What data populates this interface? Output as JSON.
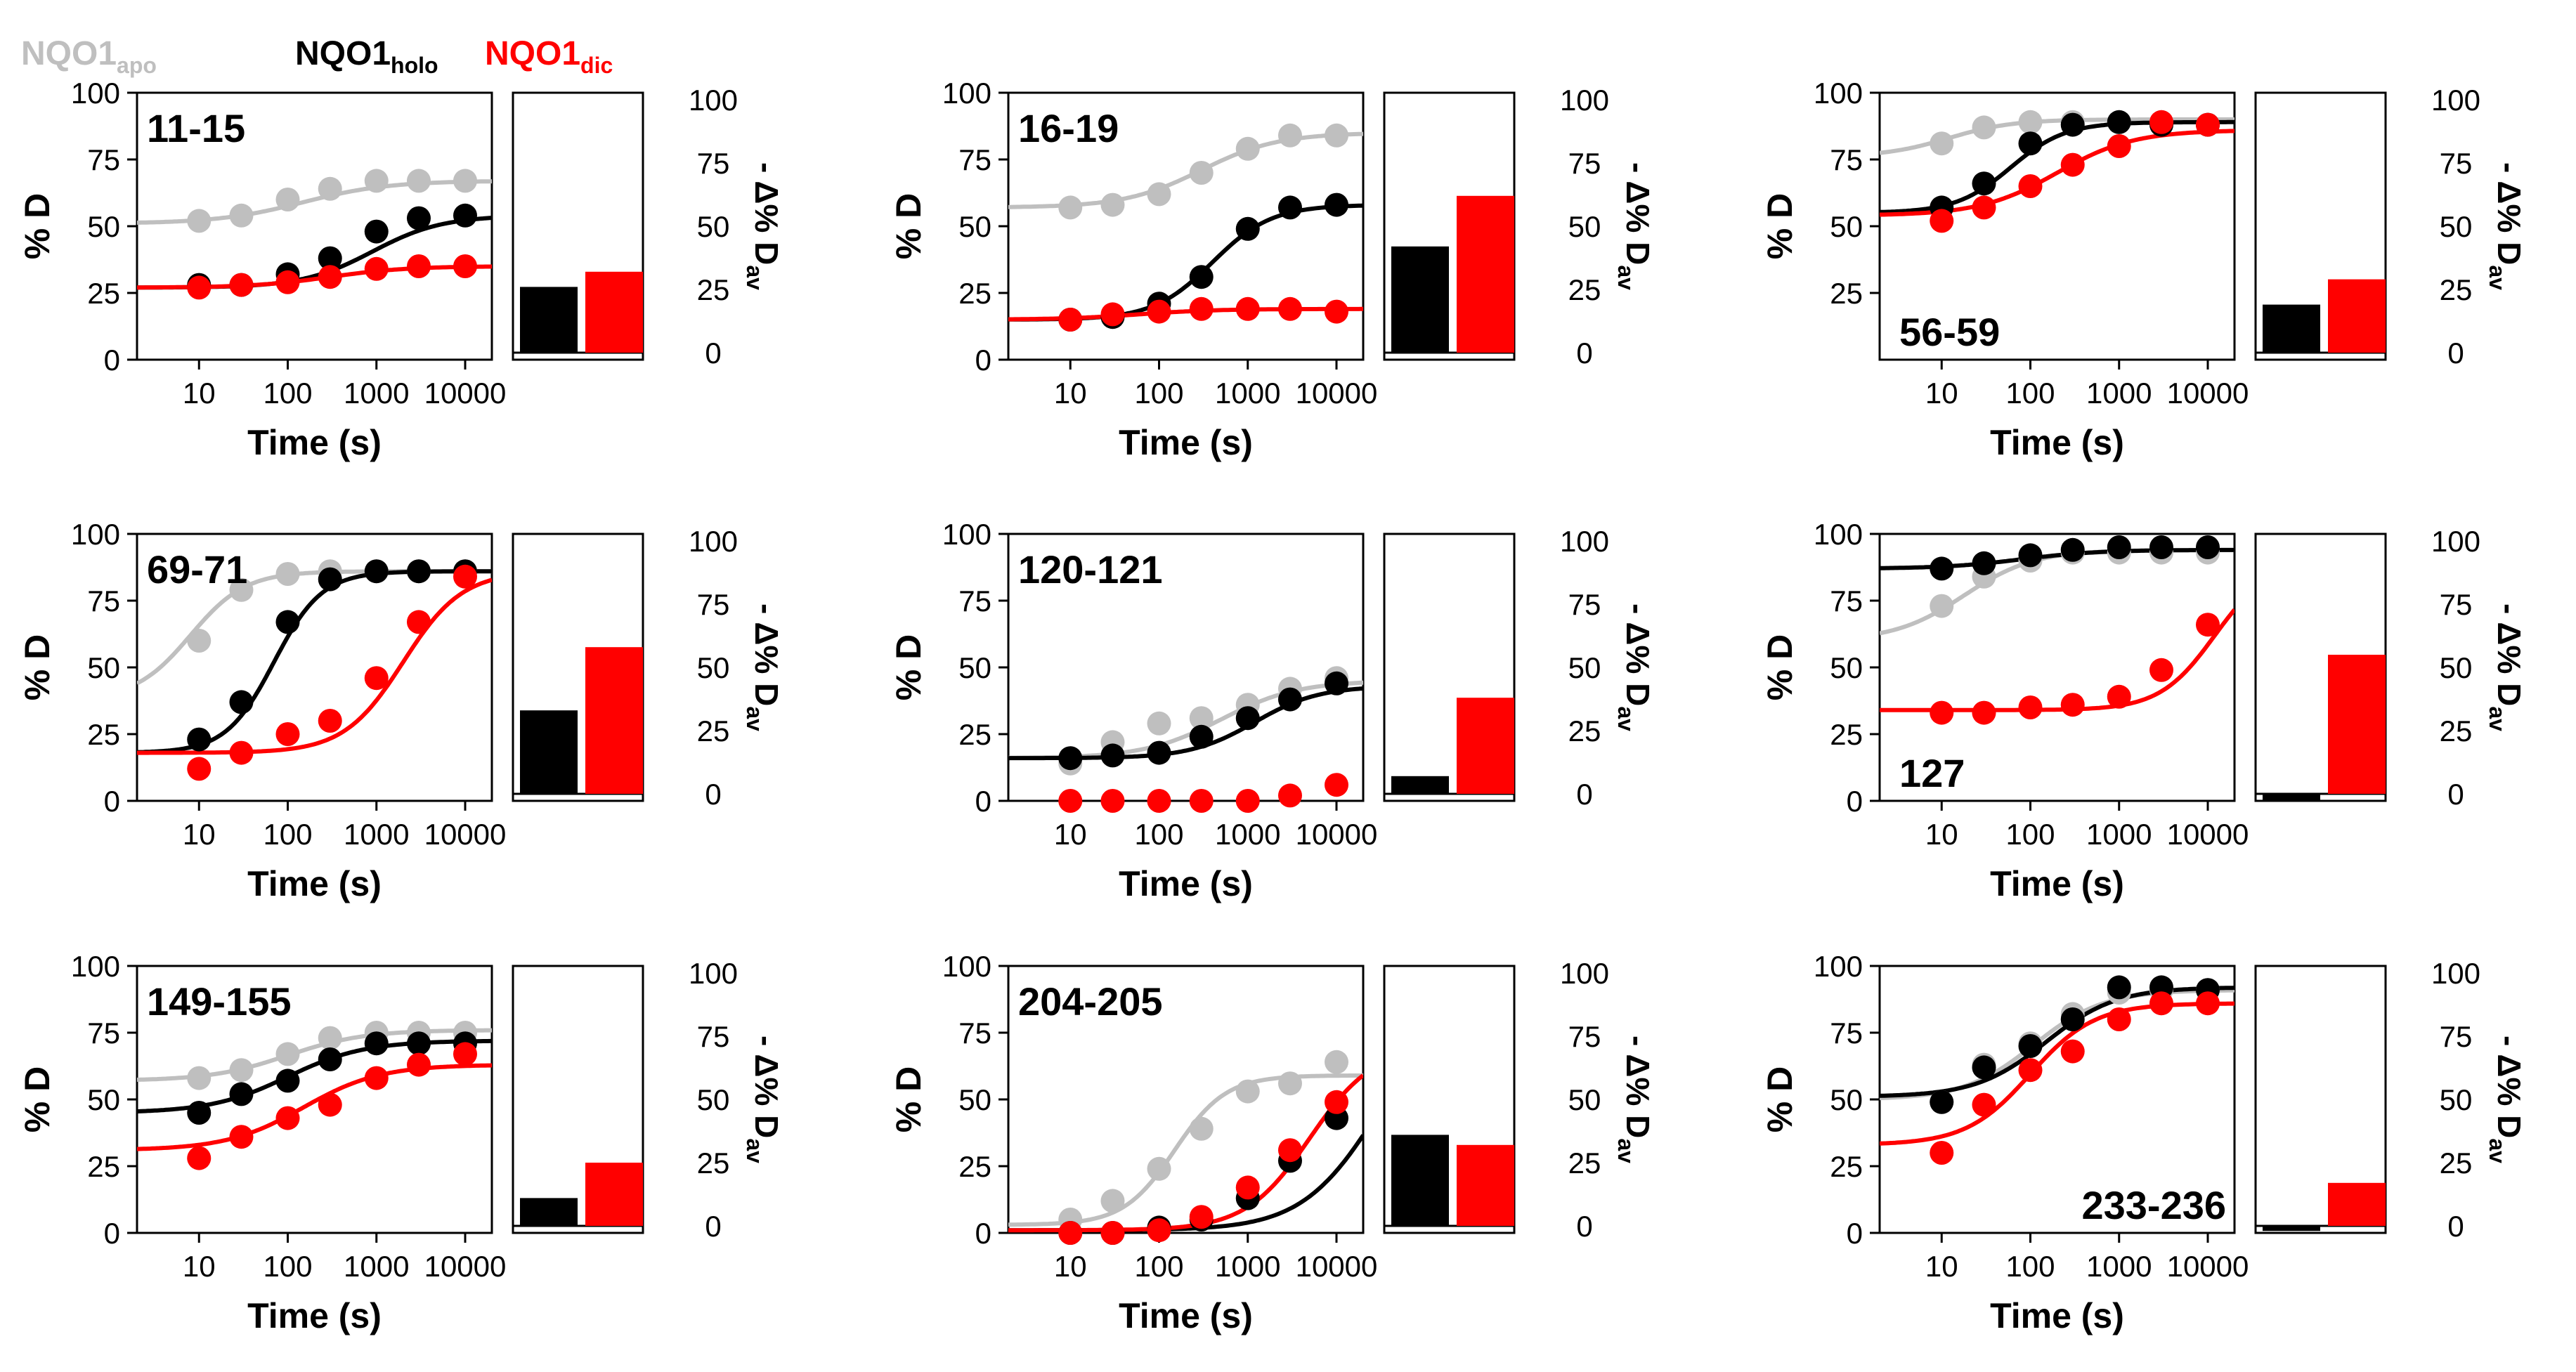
{
  "legend": [
    {
      "name": "NQO1",
      "sub": "apo",
      "color": "#bfbfbf"
    },
    {
      "name": "NQO1",
      "sub": "holo",
      "color": "#000000"
    },
    {
      "name": "NQO1",
      "sub": "dic",
      "color": "#ff0000"
    }
  ],
  "colors": {
    "apo": "#bfbfbf",
    "holo": "#000000",
    "dic": "#ff0000"
  },
  "chart_data": [
    {
      "type": "scatter",
      "title": "11-15",
      "xlabel": "Time (s)",
      "ylabel": "% D",
      "ylabel2": "- Δ% D",
      "ylabel2_sub": "av",
      "x": [
        10,
        30,
        100,
        300,
        1000,
        3000,
        10000
      ],
      "xscale": "log",
      "xlim": [
        2,
        20000
      ],
      "ylim": [
        0,
        100
      ],
      "xticks": [
        "10",
        "100",
        "1000",
        "10000"
      ],
      "yticks": [
        "0",
        "25",
        "50",
        "75",
        "100"
      ],
      "series": [
        {
          "name": "apo",
          "values": [
            52,
            54,
            60,
            64,
            67,
            67,
            67
          ],
          "fit": {
            "lo": 51,
            "hi": 67,
            "mid": 150,
            "n": 0.9
          }
        },
        {
          "name": "holo",
          "values": [
            28,
            28,
            32,
            38,
            48,
            53,
            54
          ],
          "fit": {
            "lo": 27,
            "hi": 54,
            "mid": 900,
            "n": 1.1
          }
        },
        {
          "name": "dic",
          "values": [
            27,
            28,
            29,
            31,
            34,
            35,
            35
          ],
          "fit": {
            "lo": 27,
            "hi": 35,
            "mid": 300,
            "n": 1
          }
        }
      ],
      "bars": {
        "holo": 26,
        "dic": 32
      },
      "label_pos": "top-left"
    },
    {
      "type": "scatter",
      "title": "16-19",
      "xlabel": "Time (s)",
      "ylabel": "% D",
      "ylabel2": "- Δ% D",
      "ylabel2_sub": "av",
      "x": [
        10,
        30,
        100,
        300,
        1000,
        3000,
        10000
      ],
      "xscale": "log",
      "xlim": [
        2,
        20000
      ],
      "ylim": [
        0,
        100
      ],
      "xticks": [
        "10",
        "100",
        "1000",
        "10000"
      ],
      "yticks": [
        "0",
        "25",
        "50",
        "75",
        "100"
      ],
      "series": [
        {
          "name": "apo",
          "values": [
            57,
            58,
            62,
            70,
            79,
            84,
            84
          ],
          "fit": {
            "lo": 57,
            "hi": 85,
            "mid": 300,
            "n": 1
          }
        },
        {
          "name": "holo",
          "values": [
            15,
            16,
            21,
            31,
            49,
            57,
            58
          ],
          "fit": {
            "lo": 15,
            "hi": 58,
            "mid": 400,
            "n": 1.3
          }
        },
        {
          "name": "dic",
          "values": [
            15,
            17,
            18,
            19,
            19,
            19,
            18
          ],
          "fit": {
            "lo": 15,
            "hi": 19,
            "mid": 60,
            "n": 1
          }
        }
      ],
      "bars": {
        "holo": 42,
        "dic": 62
      },
      "label_pos": "top-left"
    },
    {
      "type": "scatter",
      "title": "56-59",
      "xlabel": "Time (s)",
      "ylabel": "% D",
      "ylabel2": "- Δ% D",
      "ylabel2_sub": "av",
      "x": [
        10,
        30,
        100,
        300,
        1000,
        3000,
        10000
      ],
      "xscale": "log",
      "xlim": [
        2,
        20000
      ],
      "ylim": [
        0,
        100
      ],
      "xticks": [
        "10",
        "100",
        "1000",
        "10000"
      ],
      "yticks": [
        "25",
        "50",
        "75",
        "100"
      ],
      "series": [
        {
          "name": "apo",
          "values": [
            81,
            87,
            89,
            89,
            89,
            89,
            88
          ],
          "fit": {
            "lo": 76,
            "hi": 90,
            "mid": 12,
            "n": 1.2
          }
        },
        {
          "name": "holo",
          "values": [
            57,
            66,
            81,
            88,
            89,
            88,
            88
          ],
          "fit": {
            "lo": 55,
            "hi": 89,
            "mid": 60,
            "n": 1.4
          }
        },
        {
          "name": "dic",
          "values": [
            52,
            57,
            65,
            73,
            80,
            89,
            88
          ],
          "fit": {
            "lo": 54,
            "hi": 86,
            "mid": 200,
            "n": 1
          }
        }
      ],
      "bars": {
        "holo": 19,
        "dic": 29
      },
      "label_pos": "bottom-left"
    },
    {
      "type": "scatter",
      "title": "69-71",
      "xlabel": "Time (s)",
      "ylabel": "% D",
      "ylabel2": "- Δ% D",
      "ylabel2_sub": "av",
      "x": [
        10,
        30,
        100,
        300,
        1000,
        3000,
        10000
      ],
      "xscale": "log",
      "xlim": [
        2,
        20000
      ],
      "ylim": [
        0,
        100
      ],
      "xticks": [
        "10",
        "100",
        "1000",
        "10000"
      ],
      "yticks": [
        "0",
        "25",
        "50",
        "75",
        "100"
      ],
      "series": [
        {
          "name": "apo",
          "values": [
            60,
            79,
            85,
            86,
            86,
            86,
            86
          ],
          "fit": {
            "lo": 38,
            "hi": 86,
            "mid": 8,
            "n": 1.4
          }
        },
        {
          "name": "holo",
          "values": [
            23,
            37,
            67,
            83,
            86,
            86,
            86
          ],
          "fit": {
            "lo": 18,
            "hi": 86,
            "mid": 70,
            "n": 1.6
          }
        },
        {
          "name": "dic",
          "values": [
            12,
            18,
            25,
            30,
            46,
            67,
            84
          ],
          "fit": {
            "lo": 18,
            "hi": 86,
            "mid": 2000,
            "n": 1.3
          }
        }
      ],
      "bars": {
        "holo": 33,
        "dic": 58
      },
      "label_pos": "top-left"
    },
    {
      "type": "scatter",
      "title": "120-121",
      "xlabel": "Time (s)",
      "ylabel": "% D",
      "ylabel2": "- Δ% D",
      "ylabel2_sub": "av",
      "x": [
        10,
        30,
        100,
        300,
        1000,
        3000,
        10000
      ],
      "xscale": "log",
      "xlim": [
        2,
        20000
      ],
      "ylim": [
        0,
        100
      ],
      "xticks": [
        "10",
        "100",
        "1000",
        "10000"
      ],
      "yticks": [
        "0",
        "25",
        "50",
        "75",
        "100"
      ],
      "series": [
        {
          "name": "apo",
          "values": [
            14,
            22,
            29,
            31,
            36,
            42,
            46
          ],
          "fit": {
            "lo": 16,
            "hi": 45,
            "mid": 500,
            "n": 1
          }
        },
        {
          "name": "holo",
          "values": [
            16,
            17,
            18,
            24,
            31,
            38,
            44
          ],
          "fit": {
            "lo": 16,
            "hi": 43,
            "mid": 1200,
            "n": 1.2
          }
        },
        {
          "name": "dic",
          "values": [
            0,
            0,
            0,
            0,
            0,
            2,
            6
          ]
        }
      ],
      "bars": {
        "holo": 7,
        "dic": 38
      },
      "label_pos": "top-left"
    },
    {
      "type": "scatter",
      "title": "127",
      "xlabel": "Time (s)",
      "ylabel": "% D",
      "ylabel2": "- Δ% D",
      "ylabel2_sub": "av",
      "x": [
        10,
        30,
        100,
        300,
        1000,
        3000,
        10000
      ],
      "xscale": "log",
      "xlim": [
        2,
        20000
      ],
      "ylim": [
        0,
        100
      ],
      "xticks": [
        "10",
        "100",
        "1000",
        "10000"
      ],
      "yticks": [
        "0",
        "25",
        "50",
        "75",
        "100"
      ],
      "series": [
        {
          "name": "apo",
          "values": [
            73,
            84,
            90,
            93,
            93,
            93,
            93
          ],
          "fit": {
            "lo": 60,
            "hi": 94,
            "mid": 18,
            "n": 1.1
          }
        },
        {
          "name": "holo",
          "values": [
            87,
            89,
            92,
            94,
            95,
            95,
            95
          ],
          "fit": {
            "lo": 87,
            "hi": 94,
            "mid": 80,
            "n": 1
          }
        },
        {
          "name": "dic",
          "values": [
            33,
            33,
            35,
            36,
            39,
            49,
            66
          ],
          "fit": {
            "lo": 34,
            "hi": 90,
            "mid": 12000,
            "n": 1.4
          }
        }
      ],
      "bars": {
        "holo": -3,
        "dic": 55
      },
      "label_pos": "bottom-left"
    },
    {
      "type": "scatter",
      "title": "149-155",
      "xlabel": "Time (s)",
      "ylabel": "% D",
      "ylabel2": "- Δ% D",
      "ylabel2_sub": "av",
      "x": [
        10,
        30,
        100,
        300,
        1000,
        3000,
        10000
      ],
      "xscale": "log",
      "xlim": [
        2,
        20000
      ],
      "ylim": [
        0,
        100
      ],
      "xticks": [
        "10",
        "100",
        "1000",
        "10000"
      ],
      "yticks": [
        "0",
        "25",
        "50",
        "75",
        "100"
      ],
      "series": [
        {
          "name": "apo",
          "values": [
            58,
            61,
            67,
            73,
            75,
            75,
            75
          ],
          "fit": {
            "lo": 57,
            "hi": 76,
            "mid": 100,
            "n": 1
          }
        },
        {
          "name": "holo",
          "values": [
            45,
            52,
            57,
            65,
            71,
            71,
            71
          ],
          "fit": {
            "lo": 45,
            "hi": 72,
            "mid": 100,
            "n": 1
          }
        },
        {
          "name": "dic",
          "values": [
            28,
            36,
            43,
            48,
            58,
            63,
            67
          ],
          "fit": {
            "lo": 31,
            "hi": 63,
            "mid": 150,
            "n": 1
          }
        }
      ],
      "bars": {
        "holo": 11,
        "dic": 25
      },
      "label_pos": "top-left"
    },
    {
      "type": "scatter",
      "title": "204-205",
      "xlabel": "Time (s)",
      "ylabel": "% D",
      "ylabel2": "- Δ% D",
      "ylabel2_sub": "av",
      "x": [
        10,
        30,
        100,
        300,
        1000,
        3000,
        10000
      ],
      "xscale": "log",
      "xlim": [
        2,
        20000
      ],
      "ylim": [
        0,
        100
      ],
      "xticks": [
        "10",
        "100",
        "1000",
        "10000"
      ],
      "yticks": [
        "0",
        "25",
        "50",
        "75",
        "100"
      ],
      "series": [
        {
          "name": "apo",
          "values": [
            5,
            12,
            24,
            39,
            53,
            56,
            64
          ],
          "fit": {
            "lo": 3,
            "hi": 59,
            "mid": 150,
            "n": 1.5
          }
        },
        {
          "name": "holo",
          "values": [
            0,
            0,
            2,
            5,
            13,
            27,
            43
          ],
          "fit": {
            "lo": 1,
            "hi": 90,
            "mid": 30000,
            "n": 1
          }
        },
        {
          "name": "dic",
          "values": [
            0,
            0,
            1,
            6,
            17,
            31,
            49
          ],
          "fit": {
            "lo": 1,
            "hi": 70,
            "mid": 5000,
            "n": 1.2
          }
        }
      ],
      "bars": {
        "holo": 36,
        "dic": 32
      },
      "label_pos": "top-left"
    },
    {
      "type": "scatter",
      "title": "233-236",
      "xlabel": "Time (s)",
      "ylabel": "% D",
      "ylabel2": "- Δ% D",
      "ylabel2_sub": "av",
      "x": [
        10,
        30,
        100,
        300,
        1000,
        3000,
        10000
      ],
      "xscale": "log",
      "xlim": [
        2,
        20000
      ],
      "ylim": [
        0,
        100
      ],
      "xticks": [
        "10",
        "100",
        "1000",
        "10000"
      ],
      "yticks": [
        "0",
        "25",
        "50",
        "75",
        "100"
      ],
      "series": [
        {
          "name": "apo",
          "values": [
            49,
            63,
            71,
            82,
            90,
            91,
            91
          ],
          "fit": {
            "lo": 50,
            "hi": 91,
            "mid": 110,
            "n": 1.1
          }
        },
        {
          "name": "holo",
          "values": [
            49,
            62,
            70,
            80,
            92,
            92,
            91
          ],
          "fit": {
            "lo": 51,
            "hi": 92,
            "mid": 150,
            "n": 1.1
          }
        },
        {
          "name": "dic",
          "values": [
            30,
            48,
            61,
            68,
            80,
            86,
            86
          ],
          "fit": {
            "lo": 33,
            "hi": 86,
            "mid": 100,
            "n": 1.2
          }
        }
      ],
      "bars": {
        "holo": -2,
        "dic": 17
      },
      "label_pos": "bottom-right"
    }
  ]
}
